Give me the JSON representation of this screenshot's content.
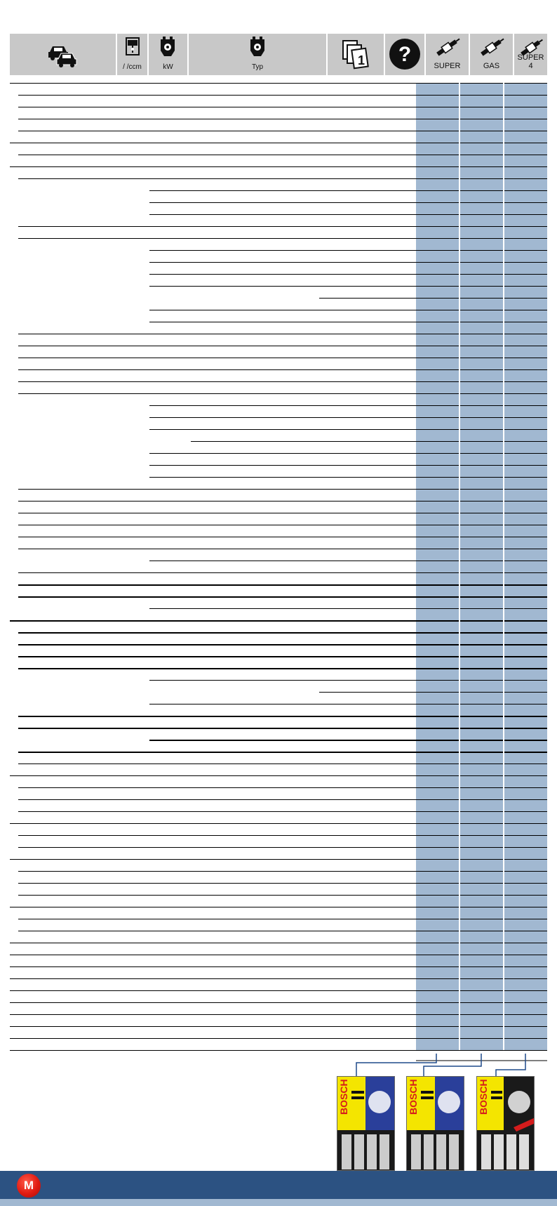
{
  "header": {
    "columns": [
      {
        "id": "vehicle",
        "icon": "vehicle-cars-icon",
        "label": ""
      },
      {
        "id": "displacement",
        "icon": "piston-cylinder-icon",
        "label": "/ /ccm"
      },
      {
        "id": "power",
        "icon": "engine-power-icon",
        "label": "kW"
      },
      {
        "id": "type",
        "icon": "engine-type-icon",
        "label": "Typ"
      },
      {
        "id": "reference",
        "icon": "document-pages-icon",
        "label": ""
      },
      {
        "id": "info",
        "icon": "question-mark-icon",
        "label": ""
      },
      {
        "id": "super",
        "icon": "spark-plug-icon",
        "label": "SUPER"
      },
      {
        "id": "gas",
        "icon": "spark-plug-icon",
        "label": "GAS"
      },
      {
        "id": "super4",
        "icon": "spark-plug-icon",
        "label": "SUPER 4"
      }
    ]
  },
  "products": [
    {
      "name": "bosch-super-pack",
      "brand": "BOSCH",
      "line": "SUPER",
      "background": "#f4e500"
    },
    {
      "name": "bosch-super-pack-2",
      "brand": "BOSCH",
      "line": "SUPER",
      "background": "#f4e500"
    },
    {
      "name": "bosch-super4-pack",
      "brand": "BOSCH",
      "line": "SUPER 4",
      "background": "#1a1a1a"
    }
  ],
  "footer": {
    "badge": "M"
  },
  "colors": {
    "accent_blue": "#a1b8d1",
    "footer_blue": "#2c5282",
    "header_grey": "#c8c8c8",
    "brand_red": "#e01b12"
  }
}
